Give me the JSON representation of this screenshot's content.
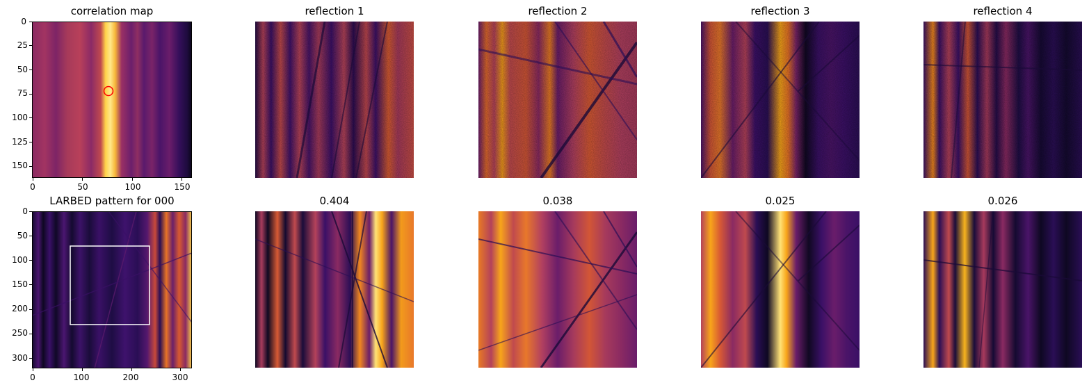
{
  "top_row": {
    "titles": [
      "correlation map",
      "reflection 1",
      "reflection 2",
      "reflection 3",
      "reflection 4"
    ],
    "corr_map_yticks": [
      "0",
      "25",
      "50",
      "75",
      "100",
      "125",
      "150"
    ],
    "corr_map_xticks": [
      "0",
      "50",
      "100",
      "150"
    ]
  },
  "bottom_row": {
    "titles": [
      "LARBED pattern for 000",
      "0.404",
      "0.038",
      "0.025",
      "0.026"
    ],
    "larbed_yticks": [
      "0",
      "50",
      "100",
      "150",
      "200",
      "250",
      "300"
    ],
    "larbed_xticks": [
      "0",
      "100",
      "200",
      "300"
    ]
  },
  "colors": {
    "colormap": "inferno",
    "marker": "#ff0000",
    "roi_box": "#ffffff"
  }
}
